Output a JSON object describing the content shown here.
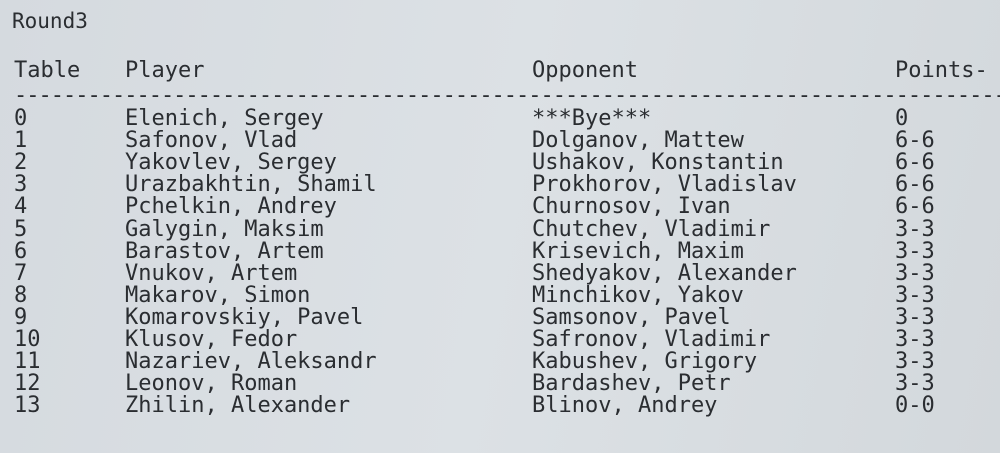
{
  "title": "Round3",
  "headers": {
    "table": "Table",
    "player": "Player",
    "opponent": "Opponent",
    "points": "Points-"
  },
  "separator": "--------------------------------------------------------------------------------------",
  "rows": [
    {
      "table": "0",
      "player": "Elenich, Sergey",
      "opponent": "***Bye***",
      "points": "0"
    },
    {
      "table": "1",
      "player": "Safonov, Vlad",
      "opponent": "Dolganov, Mattew",
      "points": "6-6"
    },
    {
      "table": "2",
      "player": "Yakovlev, Sergey",
      "opponent": "Ushakov, Konstantin",
      "points": "6-6"
    },
    {
      "table": "3",
      "player": "Urazbakhtin, Shamil",
      "opponent": "Prokhorov, Vladislav",
      "points": "6-6"
    },
    {
      "table": "4",
      "player": "Pchelkin, Andrey",
      "opponent": "Churnosov, Ivan",
      "points": "6-6"
    },
    {
      "table": "5",
      "player": "Galygin, Maksim",
      "opponent": "Chutchev, Vladimir",
      "points": "3-3"
    },
    {
      "table": "6",
      "player": "Barastov, Artem",
      "opponent": "Krisevich, Maxim",
      "points": "3-3"
    },
    {
      "table": "7",
      "player": "Vnukov, Artem",
      "opponent": "Shedyakov, Alexander",
      "points": "3-3"
    },
    {
      "table": "8",
      "player": "Makarov, Simon",
      "opponent": "Minchikov, Yakov",
      "points": "3-3"
    },
    {
      "table": "9",
      "player": "Komarovskiy, Pavel",
      "opponent": "Samsonov, Pavel",
      "points": "3-3"
    },
    {
      "table": "10",
      "player": "Klusov, Fedor",
      "opponent": "Safronov, Vladimir",
      "points": "3-3"
    },
    {
      "table": "11",
      "player": "Nazariev, Aleksandr",
      "opponent": "Kabushev, Grigory",
      "points": "3-3"
    },
    {
      "table": "12",
      "player": "Leonov, Roman",
      "opponent": "Bardashev, Petr",
      "points": "3-3"
    },
    {
      "table": "13",
      "player": "Zhilin, Alexander",
      "opponent": "Blinov, Andrey",
      "points": "0-0"
    }
  ]
}
